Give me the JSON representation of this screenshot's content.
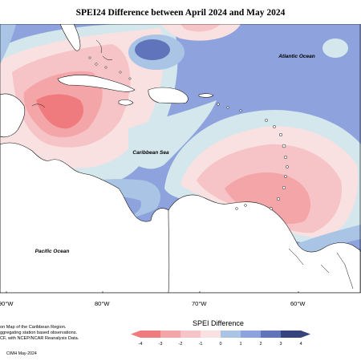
{
  "title": "SPEI24 Difference between April 2024 and May 2024",
  "map_labels": {
    "atlantic": "Atlantic Ocean",
    "caribbean": "Caribbean Sea",
    "pacific": "Pacific Ocean"
  },
  "longitude_labels": [
    "90°W",
    "80°W",
    "70°W",
    "60°W"
  ],
  "notes": [
    "on Map of the Caribbean Region.",
    "ggregating station based observations.",
    "CF, with NCEP/NCAR Reanalysis Data."
  ],
  "credit": "CIMH May-2024",
  "legend": {
    "title": "SPEI Difference",
    "ticks": [
      "-4",
      "-3",
      "-2",
      "-1",
      "0",
      "1",
      "2",
      "3",
      "4"
    ],
    "colors": [
      "#f07b7f",
      "#f3a5a7",
      "#f6c4c6",
      "#f9e0e1",
      "#d4e7ec",
      "#a9c4e4",
      "#8ea3dd",
      "#5f74ba",
      "#36437c"
    ]
  },
  "colors": {
    "land": "#ffffff",
    "ocean_base": "#8ea3dd"
  }
}
